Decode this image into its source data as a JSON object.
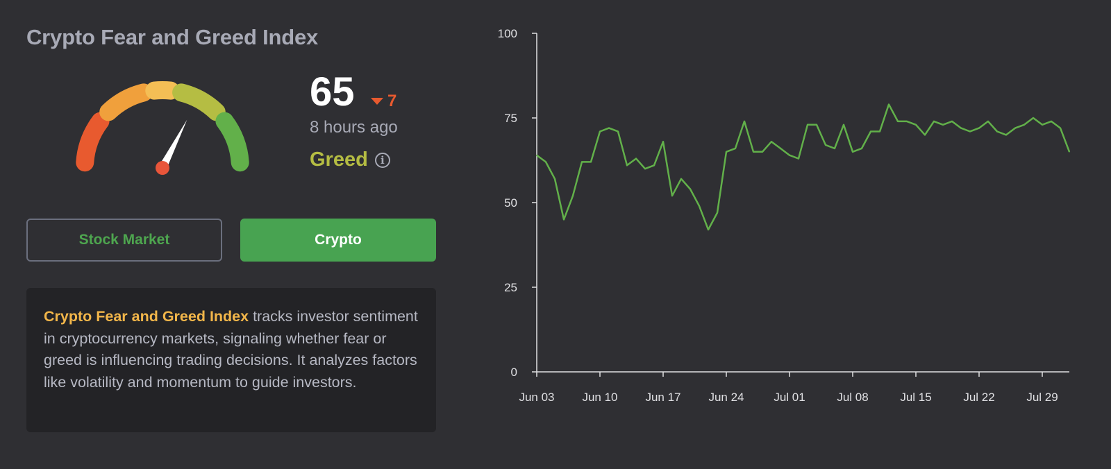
{
  "header": {
    "title": "Crypto Fear and Greed Index"
  },
  "gauge": {
    "value_percent": 65,
    "segment_colors": [
      "#e85a2f",
      "#f0a03c",
      "#f4be55",
      "#b5bd43",
      "#62b04a"
    ],
    "needle_color": "#ffffff",
    "pivot_color": "#e8553a"
  },
  "score": {
    "value": "65",
    "change": "7",
    "change_direction": "down",
    "updated": "8 hours ago",
    "label": "Greed",
    "label_color": "#b5bd43"
  },
  "toggle": {
    "stock_label": "Stock Market",
    "crypto_label": "Crypto",
    "active": "crypto"
  },
  "description": {
    "highlight": "Crypto Fear and Greed Index",
    "text": " tracks investor sentiment in cryptocurrency markets, signaling whether fear or greed is influencing trading decisions. It analyzes factors like volatility and momentum to guide investors."
  },
  "chart_data": {
    "type": "line",
    "title": "",
    "xlabel": "",
    "ylabel": "",
    "ylim": [
      0,
      100
    ],
    "yticks": [
      0,
      25,
      50,
      75,
      100
    ],
    "xticks": [
      "Jun 03",
      "Jun 10",
      "Jun 17",
      "Jun 24",
      "Jul 01",
      "Jul 08",
      "Jul 15",
      "Jul 22",
      "Jul 29"
    ],
    "x_start": "Jun 03",
    "x_end": "Jul 31",
    "grid": false,
    "line_color": "#62b04a",
    "series": [
      {
        "values": [
          64,
          62,
          57,
          45,
          52,
          62,
          62,
          71,
          72,
          71,
          61,
          63,
          60,
          61,
          68,
          52,
          57,
          54,
          49,
          42,
          47,
          65,
          66,
          74,
          65,
          65,
          68,
          66,
          64,
          63,
          73,
          73,
          67,
          66,
          73,
          65,
          66,
          71,
          71,
          79,
          74,
          74,
          73,
          70,
          74,
          73,
          74,
          72,
          71,
          72,
          74,
          71,
          70,
          72,
          73,
          75,
          73,
          74,
          72,
          65
        ]
      }
    ]
  }
}
